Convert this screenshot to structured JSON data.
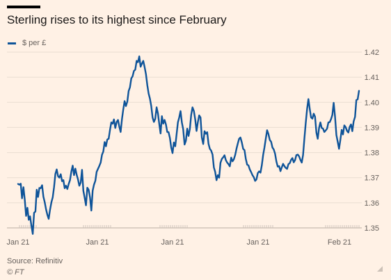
{
  "header": {
    "title": "Sterling rises to its highest since February"
  },
  "footer": {
    "source": "Source: Refinitiv",
    "copyright": "© FT"
  },
  "colors": {
    "background": "#fff1e5",
    "line": "#0f5499",
    "grid": "#e9ddd1",
    "text": "#66605c"
  },
  "chart_data": {
    "type": "line",
    "title": "Sterling rises to its highest since February",
    "xlabel": "",
    "ylabel": "",
    "ylim": [
      1.35,
      1.42
    ],
    "yticks": [
      1.35,
      1.36,
      1.37,
      1.38,
      1.39,
      1.4,
      1.41,
      1.42
    ],
    "ytick_labels": [
      "1.35",
      "1.36",
      "1.37",
      "1.38",
      "1.39",
      "1.40",
      "1.41",
      "1.42"
    ],
    "y_axis_side": "right",
    "xtick_labels": [
      "Jan 21",
      "Jan 21",
      "Jan 21",
      "Jan 21",
      "Feb 21"
    ],
    "grid": true,
    "legend_position": "top-left",
    "series": [
      {
        "name": "$ per £",
        "values": [
          1.3675,
          1.3672,
          1.3676,
          1.3618,
          1.3662,
          1.3612,
          1.3548,
          1.358,
          1.3532,
          1.3546,
          1.351,
          1.3476,
          1.356,
          1.3565,
          1.3652,
          1.3623,
          1.3659,
          1.3658,
          1.367,
          1.3624,
          1.3602,
          1.3574,
          1.3552,
          1.3536,
          1.3572,
          1.3602,
          1.3622,
          1.3662,
          1.3715,
          1.3733,
          1.3706,
          1.37,
          1.3714,
          1.3686,
          1.369,
          1.3658,
          1.3668,
          1.3655,
          1.3675,
          1.369,
          1.3725,
          1.3748,
          1.371,
          1.3736,
          1.3712,
          1.3693,
          1.3668,
          1.3681,
          1.3731,
          1.3648,
          1.362,
          1.359,
          1.366,
          1.3652,
          1.3621,
          1.3569,
          1.3648,
          1.3672,
          1.3687,
          1.3723,
          1.3735,
          1.3747,
          1.376,
          1.3791,
          1.3804,
          1.3842,
          1.3825,
          1.3852,
          1.3855,
          1.389,
          1.392,
          1.3915,
          1.3932,
          1.3898,
          1.3921,
          1.393,
          1.3903,
          1.3882,
          1.3933,
          1.3972,
          1.4005,
          1.3985,
          1.4003,
          1.4045,
          1.406,
          1.4095,
          1.4104,
          1.4125,
          1.413,
          1.4165,
          1.416,
          1.4183,
          1.4142,
          1.4154,
          1.4165,
          1.4141,
          1.4112,
          1.4069,
          1.4035,
          1.4015,
          1.3985,
          1.394,
          1.3922,
          1.3934,
          1.398,
          1.3956,
          1.3914,
          1.3876,
          1.3945,
          1.3915,
          1.393,
          1.3912,
          1.3882,
          1.3881,
          1.3858,
          1.382,
          1.3798,
          1.384,
          1.3825,
          1.3872,
          1.392,
          1.394,
          1.3965,
          1.392,
          1.3893,
          1.3832,
          1.3847,
          1.3895,
          1.3866,
          1.3894,
          1.395,
          1.398,
          1.3965,
          1.3932,
          1.3886,
          1.3921,
          1.3948,
          1.394,
          1.386,
          1.3834,
          1.3885,
          1.3875,
          1.3881,
          1.3835,
          1.3815,
          1.3808,
          1.3792,
          1.3741,
          1.3723,
          1.369,
          1.371,
          1.37,
          1.3759,
          1.3775,
          1.3781,
          1.3789,
          1.377,
          1.376,
          1.3754,
          1.3745,
          1.378,
          1.3765,
          1.3773,
          1.379,
          1.3815,
          1.3836,
          1.3855,
          1.386,
          1.384,
          1.3815,
          1.381,
          1.3775,
          1.3752,
          1.3749,
          1.3733,
          1.3722,
          1.371,
          1.3702,
          1.3687,
          1.3693,
          1.3718,
          1.3725,
          1.372,
          1.3749,
          1.379,
          1.382,
          1.3855,
          1.3889,
          1.3874,
          1.385,
          1.3843,
          1.382,
          1.3812,
          1.3795,
          1.3764,
          1.3744,
          1.3746,
          1.3726,
          1.3741,
          1.3755,
          1.3746,
          1.3739,
          1.3735,
          1.3754,
          1.3758,
          1.3771,
          1.3778,
          1.3761,
          1.377,
          1.379,
          1.3792,
          1.3785,
          1.3771,
          1.376,
          1.379,
          1.3855,
          1.3916,
          1.3974,
          1.4013,
          1.3974,
          1.394,
          1.3935,
          1.3955,
          1.3943,
          1.3879,
          1.3855,
          1.3898,
          1.392,
          1.3898,
          1.3895,
          1.3882,
          1.3888,
          1.3895,
          1.392,
          1.3921,
          1.3933,
          1.395,
          1.3998,
          1.3945,
          1.387,
          1.3843,
          1.3815,
          1.385,
          1.389,
          1.3872,
          1.3908,
          1.3901,
          1.3886,
          1.388,
          1.3902,
          1.3912,
          1.3885,
          1.3924,
          1.3942,
          1.4009,
          1.4012,
          1.4046
        ]
      }
    ]
  }
}
